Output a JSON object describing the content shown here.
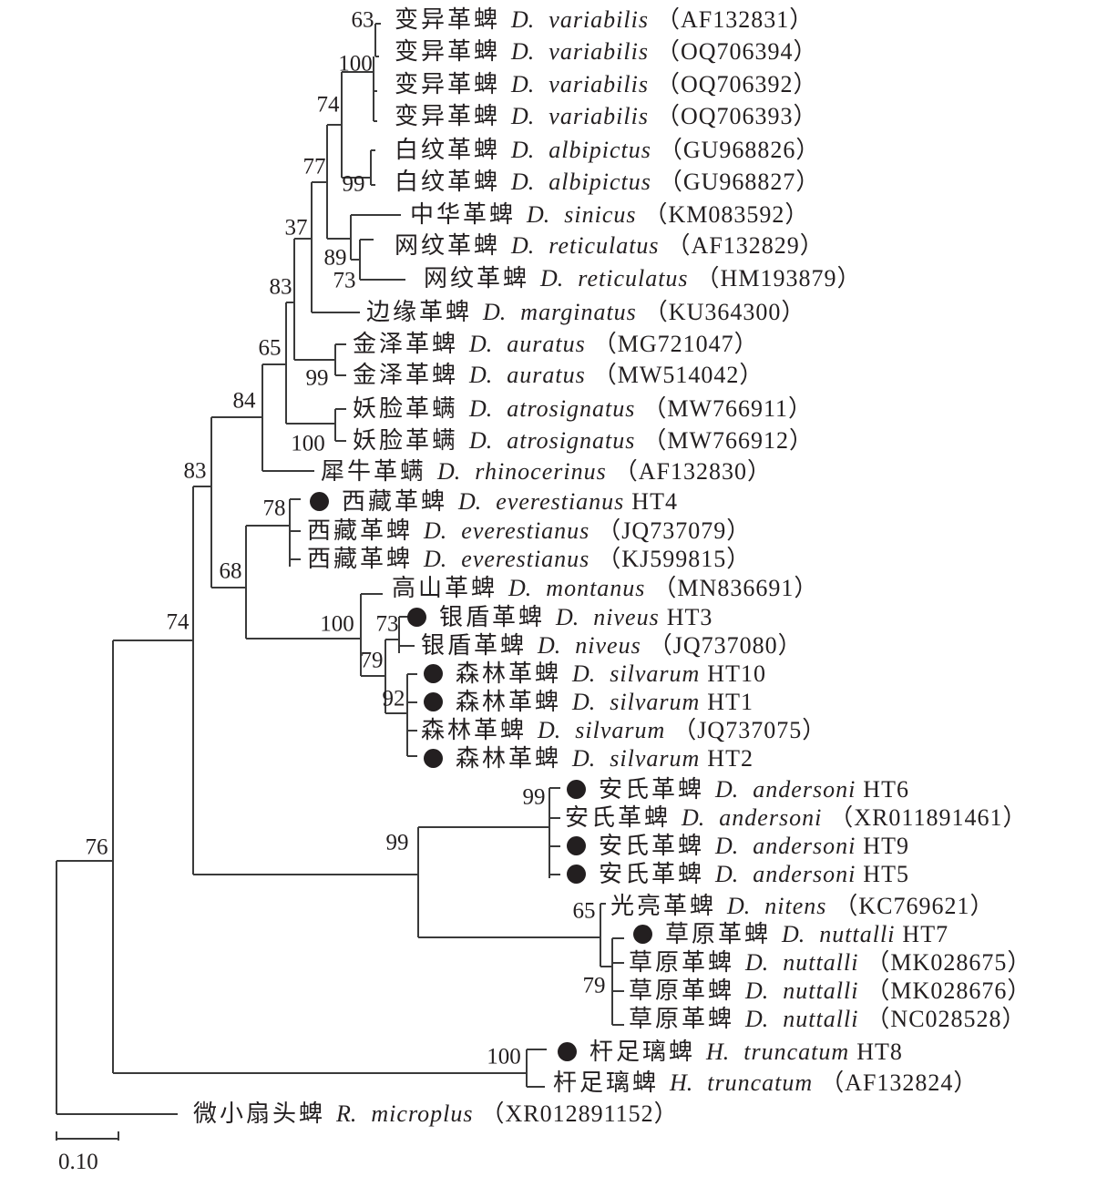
{
  "tree": {
    "marker_color": "#231f20",
    "line_color": "#3a3a3a",
    "scale_bar_label": "0.10",
    "taxa": [
      {
        "cn": "变异革蜱",
        "genus": "D.",
        "species": "variabilis",
        "acc": "（AF132831）",
        "marked": false
      },
      {
        "cn": "变异革蜱",
        "genus": "D.",
        "species": "variabilis",
        "acc": "（OQ706394）",
        "marked": false
      },
      {
        "cn": "变异革蜱",
        "genus": "D.",
        "species": "variabilis",
        "acc": "（OQ706392）",
        "marked": false
      },
      {
        "cn": "变异革蜱",
        "genus": "D.",
        "species": "variabilis",
        "acc": "（OQ706393）",
        "marked": false
      },
      {
        "cn": "白纹革蜱",
        "genus": "D.",
        "species": "albipictus",
        "acc": "（GU968826）",
        "marked": false
      },
      {
        "cn": "白纹革蜱",
        "genus": "D.",
        "species": "albipictus",
        "acc": "（GU968827）",
        "marked": false
      },
      {
        "cn": "中华革蜱",
        "genus": "D.",
        "species": "sinicus",
        "acc": "（KM083592）",
        "marked": false
      },
      {
        "cn": "网纹革蜱",
        "genus": "D.",
        "species": "reticulatus",
        "acc": "（AF132829）",
        "marked": false
      },
      {
        "cn": "网纹革蜱",
        "genus": "D.",
        "species": "reticulatus",
        "acc": "（HM193879）",
        "marked": false
      },
      {
        "cn": "边缘革蜱",
        "genus": "D.",
        "species": "marginatus",
        "acc": "（KU364300）",
        "marked": false
      },
      {
        "cn": "金泽革蜱",
        "genus": "D.",
        "species": "auratus",
        "acc": "（MG721047）",
        "marked": false
      },
      {
        "cn": "金泽革蜱",
        "genus": "D.",
        "species": "auratus",
        "acc": "（MW514042）",
        "marked": false
      },
      {
        "cn": "妖脸革螨",
        "genus": "D.",
        "species": "atrosignatus",
        "acc": "（MW766911）",
        "marked": false
      },
      {
        "cn": "妖脸革螨",
        "genus": "D.",
        "species": "atrosignatus",
        "acc": "（MW766912）",
        "marked": false
      },
      {
        "cn": "犀牛革螨",
        "genus": "D.",
        "species": "rhinocerinus",
        "acc": "（AF132830）",
        "marked": false
      },
      {
        "cn": "西藏革蜱",
        "genus": "D.",
        "species": "everestianus",
        "acc": "HT4",
        "marked": true
      },
      {
        "cn": "西藏革蜱",
        "genus": "D.",
        "species": "everestianus",
        "acc": "（JQ737079）",
        "marked": false
      },
      {
        "cn": "西藏革蜱",
        "genus": "D.",
        "species": "everestianus",
        "acc": "（KJ599815）",
        "marked": false
      },
      {
        "cn": "高山革蜱",
        "genus": "D.",
        "species": "montanus",
        "acc": "（MN836691）",
        "marked": false
      },
      {
        "cn": "银盾革蜱",
        "genus": "D.",
        "species": "niveus",
        "acc": "HT3",
        "marked": true
      },
      {
        "cn": "银盾革蜱",
        "genus": "D.",
        "species": "niveus",
        "acc": "（JQ737080）",
        "marked": false
      },
      {
        "cn": "森林革蜱",
        "genus": "D.",
        "species": "silvarum",
        "acc": "HT10",
        "marked": true
      },
      {
        "cn": "森林革蜱",
        "genus": "D.",
        "species": "silvarum",
        "acc": "HT1",
        "marked": true
      },
      {
        "cn": "森林革蜱",
        "genus": "D.",
        "species": "silvarum",
        "acc": "（JQ737075）",
        "marked": false
      },
      {
        "cn": "森林革蜱",
        "genus": "D.",
        "species": "silvarum",
        "acc": "HT2",
        "marked": true
      },
      {
        "cn": "安氏革蜱",
        "genus": "D.",
        "species": "andersoni",
        "acc": "HT6",
        "marked": true
      },
      {
        "cn": "安氏革蜱",
        "genus": "D.",
        "species": "andersoni",
        "acc": "（XR011891461）",
        "marked": false
      },
      {
        "cn": "安氏革蜱",
        "genus": "D.",
        "species": "andersoni",
        "acc": "HT9",
        "marked": true
      },
      {
        "cn": "安氏革蜱",
        "genus": "D.",
        "species": "andersoni",
        "acc": "HT5",
        "marked": true
      },
      {
        "cn": "光亮革蜱",
        "genus": "D.",
        "species": "nitens",
        "acc": "（KC769621）",
        "marked": false
      },
      {
        "cn": "草原革蜱",
        "genus": "D.",
        "species": "nuttalli",
        "acc": "HT7",
        "marked": true
      },
      {
        "cn": "草原革蜱",
        "genus": "D.",
        "species": "nuttalli",
        "acc": "（MK028675）",
        "marked": false
      },
      {
        "cn": "草原革蜱",
        "genus": "D.",
        "species": "nuttalli",
        "acc": "（MK028676）",
        "marked": false
      },
      {
        "cn": "草原革蜱",
        "genus": "D.",
        "species": "nuttalli",
        "acc": "（NC028528）",
        "marked": false
      },
      {
        "cn": "杆足璃蜱",
        "genus": "H.",
        "species": "truncatum",
        "acc": "HT8",
        "marked": true
      },
      {
        "cn": "杆足璃蜱",
        "genus": "H.",
        "species": "truncatum",
        "acc": "（AF132824）",
        "marked": false
      },
      {
        "cn": "微小扇头蜱",
        "genus": "R.",
        "species": "microplus",
        "acc": "（XR012891152）",
        "marked": false
      }
    ],
    "bootstrap": [
      "63",
      "100",
      "74",
      "77",
      "99",
      "37",
      "89",
      "73",
      "83",
      "65",
      "99",
      "100",
      "84",
      "83",
      "78",
      "68",
      "74",
      "100",
      "73",
      "79",
      "92",
      "76",
      "99",
      "99",
      "65",
      "79",
      "100"
    ]
  }
}
